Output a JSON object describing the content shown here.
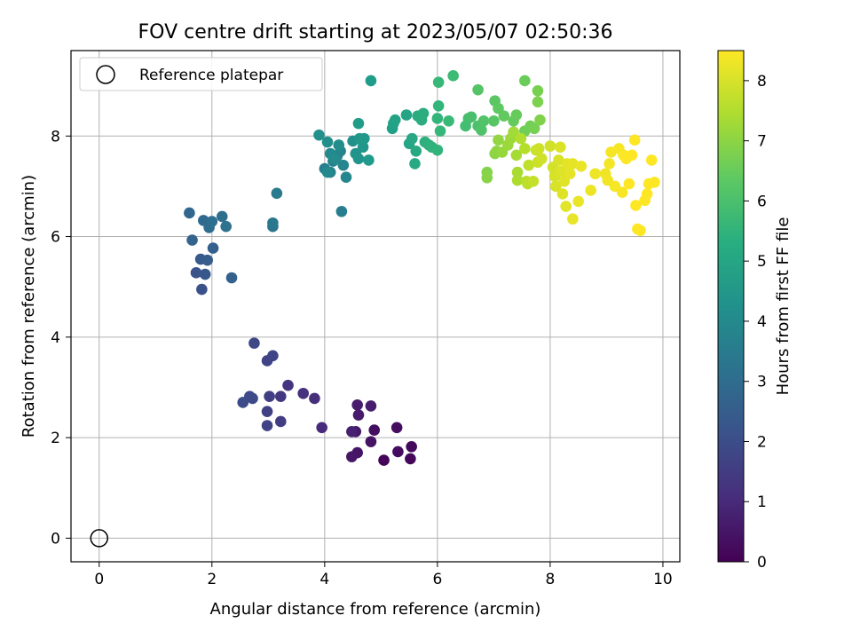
{
  "chart_data": {
    "type": "scatter",
    "title": "FOV centre drift starting at 2023/05/07 02:50:36",
    "xlabel": "Angular distance from reference (arcmin)",
    "ylabel": "Rotation from reference (arcmin)",
    "xlim": [
      -0.5,
      10.3
    ],
    "ylim": [
      -0.47,
      9.7
    ],
    "xticks": [
      "0",
      "2",
      "4",
      "6",
      "8",
      "10"
    ],
    "yticks": [
      "0",
      "2",
      "4",
      "6",
      "8"
    ],
    "grid": true,
    "legend": {
      "placement": "upper-left",
      "entries": [
        "Reference platepar"
      ]
    },
    "colorbar": {
      "label": "Hours from first FF file",
      "colormap": "viridis",
      "range": [
        0,
        8.5
      ],
      "ticks": [
        "0",
        "1",
        "2",
        "3",
        "4",
        "5",
        "6",
        "7",
        "8"
      ]
    },
    "reference_point": {
      "x": 0,
      "y": 0
    },
    "points": [
      {
        "x": 5.05,
        "y": 1.55,
        "c": 0.1
      },
      {
        "x": 5.52,
        "y": 1.58,
        "c": 0.15
      },
      {
        "x": 5.54,
        "y": 1.82,
        "c": 0.2
      },
      {
        "x": 5.3,
        "y": 1.72,
        "c": 0.25
      },
      {
        "x": 5.28,
        "y": 2.2,
        "c": 0.3
      },
      {
        "x": 4.88,
        "y": 2.15,
        "c": 0.35
      },
      {
        "x": 4.82,
        "y": 1.92,
        "c": 0.4
      },
      {
        "x": 4.58,
        "y": 1.7,
        "c": 0.45
      },
      {
        "x": 4.48,
        "y": 1.62,
        "c": 0.5
      },
      {
        "x": 4.55,
        "y": 2.12,
        "c": 0.55
      },
      {
        "x": 4.6,
        "y": 2.45,
        "c": 0.6
      },
      {
        "x": 4.58,
        "y": 2.65,
        "c": 0.65
      },
      {
        "x": 4.82,
        "y": 2.63,
        "c": 0.7
      },
      {
        "x": 4.48,
        "y": 2.12,
        "c": 0.8
      },
      {
        "x": 3.95,
        "y": 2.2,
        "c": 1.0
      },
      {
        "x": 3.82,
        "y": 2.78,
        "c": 1.1
      },
      {
        "x": 3.62,
        "y": 2.88,
        "c": 1.2
      },
      {
        "x": 3.35,
        "y": 3.04,
        "c": 1.3
      },
      {
        "x": 3.22,
        "y": 2.82,
        "c": 1.4
      },
      {
        "x": 3.22,
        "y": 2.32,
        "c": 1.5
      },
      {
        "x": 3.02,
        "y": 2.82,
        "c": 1.55
      },
      {
        "x": 2.98,
        "y": 2.52,
        "c": 1.6
      },
      {
        "x": 2.98,
        "y": 2.24,
        "c": 1.65
      },
      {
        "x": 2.98,
        "y": 3.53,
        "c": 1.7
      },
      {
        "x": 3.08,
        "y": 3.63,
        "c": 1.75
      },
      {
        "x": 2.75,
        "y": 3.88,
        "c": 1.8
      },
      {
        "x": 2.72,
        "y": 2.78,
        "c": 1.85
      },
      {
        "x": 2.67,
        "y": 2.82,
        "c": 1.9
      },
      {
        "x": 2.55,
        "y": 2.7,
        "c": 1.95
      },
      {
        "x": 1.82,
        "y": 4.95,
        "c": 2.1
      },
      {
        "x": 1.72,
        "y": 5.28,
        "c": 2.2
      },
      {
        "x": 1.88,
        "y": 5.25,
        "c": 2.3
      },
      {
        "x": 1.8,
        "y": 5.55,
        "c": 2.4
      },
      {
        "x": 1.92,
        "y": 5.53,
        "c": 2.5
      },
      {
        "x": 2.02,
        "y": 5.77,
        "c": 2.55
      },
      {
        "x": 2.35,
        "y": 5.18,
        "c": 2.6
      },
      {
        "x": 1.65,
        "y": 5.93,
        "c": 2.7
      },
      {
        "x": 1.6,
        "y": 6.47,
        "c": 2.8
      },
      {
        "x": 1.85,
        "y": 6.32,
        "c": 2.9
      },
      {
        "x": 1.95,
        "y": 6.18,
        "c": 3.0
      },
      {
        "x": 2.0,
        "y": 6.3,
        "c": 3.05
      },
      {
        "x": 2.18,
        "y": 6.4,
        "c": 3.1
      },
      {
        "x": 2.25,
        "y": 6.2,
        "c": 3.2
      },
      {
        "x": 3.08,
        "y": 6.2,
        "c": 3.3
      },
      {
        "x": 3.08,
        "y": 6.27,
        "c": 3.4
      },
      {
        "x": 3.15,
        "y": 6.86,
        "c": 3.5
      },
      {
        "x": 4.3,
        "y": 6.5,
        "c": 3.6
      },
      {
        "x": 4.0,
        "y": 7.35,
        "c": 3.65
      },
      {
        "x": 4.1,
        "y": 7.28,
        "c": 3.7
      },
      {
        "x": 4.15,
        "y": 7.5,
        "c": 3.75
      },
      {
        "x": 4.22,
        "y": 7.6,
        "c": 3.8
      },
      {
        "x": 4.28,
        "y": 7.7,
        "c": 3.85
      },
      {
        "x": 4.33,
        "y": 7.42,
        "c": 3.9
      },
      {
        "x": 4.38,
        "y": 7.18,
        "c": 3.95
      },
      {
        "x": 4.05,
        "y": 7.28,
        "c": 4.0
      },
      {
        "x": 4.1,
        "y": 7.65,
        "c": 4.05
      },
      {
        "x": 4.18,
        "y": 7.55,
        "c": 4.1
      },
      {
        "x": 4.25,
        "y": 7.82,
        "c": 4.15
      },
      {
        "x": 4.05,
        "y": 7.88,
        "c": 4.2
      },
      {
        "x": 3.9,
        "y": 8.02,
        "c": 4.25
      },
      {
        "x": 4.5,
        "y": 7.9,
        "c": 4.3
      },
      {
        "x": 4.55,
        "y": 7.65,
        "c": 4.35
      },
      {
        "x": 4.6,
        "y": 7.55,
        "c": 4.4
      },
      {
        "x": 4.68,
        "y": 7.78,
        "c": 4.45
      },
      {
        "x": 4.62,
        "y": 7.95,
        "c": 4.5
      },
      {
        "x": 4.7,
        "y": 7.95,
        "c": 4.55
      },
      {
        "x": 4.78,
        "y": 7.52,
        "c": 4.6
      },
      {
        "x": 4.6,
        "y": 8.25,
        "c": 4.65
      },
      {
        "x": 4.82,
        "y": 9.1,
        "c": 4.7
      },
      {
        "x": 5.2,
        "y": 8.15,
        "c": 4.8
      },
      {
        "x": 5.22,
        "y": 8.25,
        "c": 4.85
      },
      {
        "x": 5.25,
        "y": 8.32,
        "c": 4.9
      },
      {
        "x": 5.45,
        "y": 8.42,
        "c": 4.95
      },
      {
        "x": 5.5,
        "y": 7.85,
        "c": 5.0
      },
      {
        "x": 5.55,
        "y": 7.95,
        "c": 5.05
      },
      {
        "x": 5.6,
        "y": 7.45,
        "c": 5.1
      },
      {
        "x": 5.62,
        "y": 7.7,
        "c": 5.15
      },
      {
        "x": 5.65,
        "y": 8.4,
        "c": 5.2
      },
      {
        "x": 5.72,
        "y": 8.32,
        "c": 5.25
      },
      {
        "x": 5.75,
        "y": 8.45,
        "c": 5.3
      },
      {
        "x": 5.78,
        "y": 7.88,
        "c": 5.35
      },
      {
        "x": 5.85,
        "y": 7.82,
        "c": 5.4
      },
      {
        "x": 5.9,
        "y": 7.78,
        "c": 5.45
      },
      {
        "x": 6.0,
        "y": 7.72,
        "c": 5.5
      },
      {
        "x": 6.0,
        "y": 8.35,
        "c": 5.55
      },
      {
        "x": 6.02,
        "y": 8.6,
        "c": 5.6
      },
      {
        "x": 6.05,
        "y": 8.1,
        "c": 5.65
      },
      {
        "x": 6.02,
        "y": 9.07,
        "c": 5.7
      },
      {
        "x": 6.2,
        "y": 8.3,
        "c": 5.75
      },
      {
        "x": 6.28,
        "y": 9.2,
        "c": 5.8
      },
      {
        "x": 6.5,
        "y": 8.2,
        "c": 5.9
      },
      {
        "x": 6.55,
        "y": 8.35,
        "c": 5.95
      },
      {
        "x": 6.6,
        "y": 8.38,
        "c": 6.0
      },
      {
        "x": 6.72,
        "y": 8.2,
        "c": 6.05
      },
      {
        "x": 6.78,
        "y": 8.12,
        "c": 6.1
      },
      {
        "x": 6.82,
        "y": 8.3,
        "c": 6.15
      },
      {
        "x": 6.72,
        "y": 8.92,
        "c": 6.2
      },
      {
        "x": 7.0,
        "y": 8.3,
        "c": 6.25
      },
      {
        "x": 7.02,
        "y": 8.7,
        "c": 6.3
      },
      {
        "x": 7.08,
        "y": 8.55,
        "c": 6.35
      },
      {
        "x": 7.18,
        "y": 8.4,
        "c": 6.4
      },
      {
        "x": 7.35,
        "y": 8.3,
        "c": 6.45
      },
      {
        "x": 7.4,
        "y": 8.42,
        "c": 6.5
      },
      {
        "x": 7.55,
        "y": 9.1,
        "c": 6.55
      },
      {
        "x": 7.55,
        "y": 8.1,
        "c": 6.6
      },
      {
        "x": 7.65,
        "y": 8.2,
        "c": 6.65
      },
      {
        "x": 7.72,
        "y": 8.15,
        "c": 6.7
      },
      {
        "x": 7.78,
        "y": 8.9,
        "c": 6.75
      },
      {
        "x": 7.78,
        "y": 8.68,
        "c": 6.8
      },
      {
        "x": 7.82,
        "y": 8.32,
        "c": 6.85
      },
      {
        "x": 6.88,
        "y": 7.28,
        "c": 6.9
      },
      {
        "x": 6.88,
        "y": 7.17,
        "c": 6.95
      },
      {
        "x": 7.02,
        "y": 7.65,
        "c": 7.0
      },
      {
        "x": 7.05,
        "y": 7.7,
        "c": 7.05
      },
      {
        "x": 7.08,
        "y": 7.92,
        "c": 7.1
      },
      {
        "x": 7.15,
        "y": 7.68,
        "c": 7.15
      },
      {
        "x": 7.25,
        "y": 7.82,
        "c": 7.2
      },
      {
        "x": 7.3,
        "y": 7.95,
        "c": 7.25
      },
      {
        "x": 7.35,
        "y": 8.08,
        "c": 7.3
      },
      {
        "x": 7.4,
        "y": 7.62,
        "c": 7.35
      },
      {
        "x": 7.42,
        "y": 7.28,
        "c": 7.4
      },
      {
        "x": 7.42,
        "y": 7.12,
        "c": 7.45
      },
      {
        "x": 7.48,
        "y": 7.95,
        "c": 7.5
      },
      {
        "x": 7.55,
        "y": 7.75,
        "c": 7.55
      },
      {
        "x": 7.58,
        "y": 7.1,
        "c": 7.6
      },
      {
        "x": 7.6,
        "y": 7.05,
        "c": 7.65
      },
      {
        "x": 7.62,
        "y": 7.42,
        "c": 7.7
      },
      {
        "x": 7.7,
        "y": 7.1,
        "c": 7.75
      },
      {
        "x": 7.75,
        "y": 7.72,
        "c": 7.8
      },
      {
        "x": 7.78,
        "y": 7.48,
        "c": 7.85
      },
      {
        "x": 7.8,
        "y": 7.75,
        "c": 7.88
      },
      {
        "x": 7.85,
        "y": 7.55,
        "c": 7.9
      },
      {
        "x": 8.0,
        "y": 7.8,
        "c": 7.92
      },
      {
        "x": 8.05,
        "y": 7.38,
        "c": 7.95
      },
      {
        "x": 8.08,
        "y": 7.2,
        "c": 7.98
      },
      {
        "x": 8.1,
        "y": 7.0,
        "c": 8.0
      },
      {
        "x": 8.15,
        "y": 7.52,
        "c": 8.02
      },
      {
        "x": 8.18,
        "y": 7.78,
        "c": 8.05
      },
      {
        "x": 8.2,
        "y": 7.3,
        "c": 8.08
      },
      {
        "x": 8.22,
        "y": 6.85,
        "c": 8.1
      },
      {
        "x": 8.25,
        "y": 7.1,
        "c": 8.12
      },
      {
        "x": 8.28,
        "y": 6.6,
        "c": 8.14
      },
      {
        "x": 8.3,
        "y": 7.45,
        "c": 8.16
      },
      {
        "x": 8.35,
        "y": 7.25,
        "c": 8.18
      },
      {
        "x": 8.4,
        "y": 7.45,
        "c": 8.2
      },
      {
        "x": 8.4,
        "y": 6.35,
        "c": 8.22
      },
      {
        "x": 8.5,
        "y": 6.7,
        "c": 8.24
      },
      {
        "x": 8.55,
        "y": 7.4,
        "c": 8.26
      },
      {
        "x": 8.72,
        "y": 6.92,
        "c": 8.28
      },
      {
        "x": 8.8,
        "y": 7.25,
        "c": 8.3
      },
      {
        "x": 8.98,
        "y": 7.25,
        "c": 8.32
      },
      {
        "x": 9.02,
        "y": 7.12,
        "c": 8.34
      },
      {
        "x": 9.05,
        "y": 7.45,
        "c": 8.36
      },
      {
        "x": 9.08,
        "y": 7.68,
        "c": 8.38
      },
      {
        "x": 9.15,
        "y": 7.0,
        "c": 8.4
      },
      {
        "x": 9.22,
        "y": 7.75,
        "c": 8.42
      },
      {
        "x": 9.28,
        "y": 6.88,
        "c": 8.44
      },
      {
        "x": 9.3,
        "y": 7.62,
        "c": 8.46
      },
      {
        "x": 9.35,
        "y": 7.55,
        "c": 8.48
      },
      {
        "x": 9.4,
        "y": 7.05,
        "c": 8.5
      },
      {
        "x": 9.45,
        "y": 7.62,
        "c": 8.5
      },
      {
        "x": 9.5,
        "y": 7.92,
        "c": 8.5
      },
      {
        "x": 9.52,
        "y": 6.62,
        "c": 8.5
      },
      {
        "x": 9.55,
        "y": 6.15,
        "c": 8.5
      },
      {
        "x": 9.6,
        "y": 6.12,
        "c": 8.5
      },
      {
        "x": 9.68,
        "y": 6.72,
        "c": 8.5
      },
      {
        "x": 9.72,
        "y": 6.85,
        "c": 8.5
      },
      {
        "x": 9.75,
        "y": 7.05,
        "c": 8.5
      },
      {
        "x": 9.8,
        "y": 7.52,
        "c": 8.5
      },
      {
        "x": 9.85,
        "y": 7.08,
        "c": 8.5
      }
    ]
  }
}
